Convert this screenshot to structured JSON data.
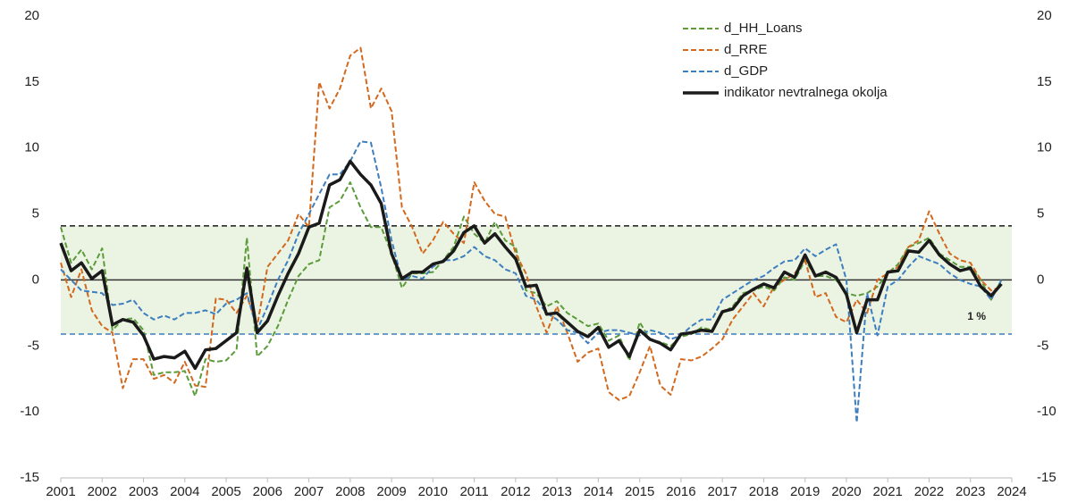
{
  "chart_data": {
    "type": "line",
    "x": [
      2001,
      2001.25,
      2001.5,
      2001.75,
      2002,
      2002.25,
      2002.5,
      2002.75,
      2003,
      2003.25,
      2003.5,
      2003.75,
      2004,
      2004.25,
      2004.5,
      2004.75,
      2005,
      2005.25,
      2005.5,
      2005.75,
      2006,
      2006.25,
      2006.5,
      2006.75,
      2007,
      2007.25,
      2007.5,
      2007.75,
      2008,
      2008.25,
      2008.5,
      2008.75,
      2009,
      2009.25,
      2009.5,
      2009.75,
      2010,
      2010.25,
      2010.5,
      2010.75,
      2011,
      2011.25,
      2011.5,
      2011.75,
      2012,
      2012.25,
      2012.5,
      2012.75,
      2013,
      2013.25,
      2013.5,
      2013.75,
      2014,
      2014.25,
      2014.5,
      2014.75,
      2015,
      2015.25,
      2015.5,
      2015.75,
      2016,
      2016.25,
      2016.5,
      2016.75,
      2017,
      2017.25,
      2017.5,
      2017.75,
      2018,
      2018.25,
      2018.5,
      2018.75,
      2019,
      2019.25,
      2019.5,
      2019.75,
      2020,
      2020.25,
      2020.5,
      2020.75,
      2021,
      2021.25,
      2021.5,
      2021.75,
      2022,
      2022.25,
      2022.5,
      2022.75,
      2023,
      2023.25,
      2023.5,
      2023.75
    ],
    "series": [
      {
        "name": "d_HH_Loans",
        "color": "#5b9b3a",
        "dash": true,
        "values": [
          4.0,
          1.3,
          2.3,
          0.8,
          2.4,
          -3.8,
          -3.0,
          -2.9,
          -3.8,
          -7.2,
          -7.0,
          -7.0,
          -6.9,
          -8.8,
          -6.0,
          -6.2,
          -6.1,
          -5.3,
          3.2,
          -5.8,
          -5.0,
          -3.5,
          -1.5,
          0.3,
          1.2,
          1.5,
          5.5,
          6.0,
          7.4,
          5.5,
          4.0,
          4.0,
          2.0,
          -0.6,
          0.5,
          0.5,
          0.6,
          1.5,
          2.5,
          4.8,
          3.5,
          2.8,
          4.4,
          3.0,
          2.5,
          -0.8,
          -1.0,
          -2.0,
          -1.6,
          -2.5,
          -3.0,
          -3.5,
          -3.3,
          -4.6,
          -4.2,
          -6.1,
          -3.2,
          -4.5,
          -4.7,
          -5.0,
          -4.3,
          -4.1,
          -3.6,
          -3.8,
          -2.5,
          -2.0,
          -1.0,
          -0.8,
          -0.5,
          -0.8,
          0.2,
          0.0,
          1.5,
          0.3,
          0.3,
          0.0,
          -1.0,
          -1.2,
          -1.0,
          -0.5,
          0.5,
          1.2,
          2.5,
          2.8,
          3.2,
          2.0,
          1.5,
          1.0,
          1.0,
          0.0,
          -1.5,
          0.0
        ]
      },
      {
        "name": "d_RRE",
        "color": "#d2691e",
        "dash": true,
        "values": [
          1.3,
          -1.3,
          0.8,
          -2.3,
          -3.5,
          -4.0,
          -8.2,
          -6.0,
          -6.0,
          -7.5,
          -7.2,
          -7.8,
          -6.2,
          -8.0,
          -8.1,
          -1.4,
          -1.5,
          -2.5,
          -1.2,
          -3.5,
          1.0,
          2.0,
          3.0,
          5.0,
          4.0,
          15.0,
          13.0,
          14.5,
          17.0,
          17.6,
          13.0,
          14.5,
          12.8,
          5.5,
          4.0,
          2.0,
          3.0,
          4.4,
          3.5,
          2.8,
          7.4,
          6.0,
          5.0,
          4.8,
          2.0,
          0.5,
          -2.0,
          -4.0,
          -2.0,
          -4.0,
          -6.2,
          -5.5,
          -5.2,
          -8.5,
          -9.1,
          -8.8,
          -7.0,
          -5.0,
          -8.0,
          -8.7,
          -6.0,
          -6.1,
          -5.8,
          -5.2,
          -4.5,
          -3.0,
          -2.0,
          -1.0,
          -2.0,
          -0.5,
          0.0,
          0.5,
          1.5,
          -1.3,
          -1.0,
          -2.8,
          -3.2,
          -1.5,
          -2.5,
          0.0,
          0.5,
          1.0,
          2.5,
          3.0,
          5.2,
          3.5,
          2.0,
          1.5,
          1.3,
          0.0,
          -0.8,
          -0.5
        ]
      },
      {
        "name": "d_GDP",
        "color": "#3d7ebf",
        "dash": true,
        "values": [
          0.8,
          0.0,
          -0.8,
          -0.9,
          -1.0,
          -1.9,
          -1.8,
          -1.5,
          -2.5,
          -3.0,
          -2.7,
          -3.0,
          -2.5,
          -2.5,
          -2.3,
          -2.6,
          -1.8,
          -1.5,
          -1.0,
          -3.8,
          -2.0,
          0.0,
          1.5,
          3.5,
          5.0,
          6.5,
          8.0,
          8.0,
          9.0,
          10.5,
          10.4,
          7.0,
          3.0,
          0.0,
          0.3,
          0.1,
          1.0,
          1.5,
          1.5,
          1.8,
          2.5,
          1.8,
          1.5,
          0.8,
          0.5,
          -1.2,
          -1.5,
          -2.5,
          -3.0,
          -3.8,
          -4.0,
          -4.8,
          -4.0,
          -3.8,
          -3.8,
          -4.0,
          -4.2,
          -3.8,
          -4.0,
          -4.5,
          -4.2,
          -3.5,
          -3.0,
          -3.0,
          -1.5,
          -1.0,
          -0.5,
          0.0,
          0.3,
          0.9,
          1.4,
          1.5,
          2.4,
          1.8,
          2.3,
          2.7,
          0.0,
          -10.8,
          -1.0,
          -4.2,
          -0.5,
          0.0,
          1.0,
          1.8,
          1.5,
          1.2,
          0.5,
          0.0,
          -0.3,
          -0.5,
          -1.5,
          0.0
        ]
      },
      {
        "name": "indikator nevtralnega okolja",
        "color": "#1a1a1a",
        "dash": false,
        "values": [
          2.8,
          0.7,
          1.3,
          0.1,
          0.7,
          -3.4,
          -3.0,
          -3.2,
          -4.2,
          -6.0,
          -5.8,
          -5.9,
          -5.4,
          -6.7,
          -5.3,
          -5.2,
          -4.6,
          -4.0,
          0.9,
          -4.0,
          -3.1,
          -1.2,
          0.5,
          2.0,
          4.0,
          4.3,
          7.2,
          7.6,
          9.0,
          8.0,
          7.2,
          5.8,
          2.0,
          0.1,
          0.6,
          0.6,
          1.2,
          1.4,
          2.2,
          3.6,
          4.1,
          2.8,
          3.5,
          2.5,
          1.6,
          -0.5,
          -0.4,
          -2.6,
          -2.5,
          -3.2,
          -3.9,
          -4.3,
          -3.6,
          -5.1,
          -4.6,
          -5.8,
          -3.8,
          -4.5,
          -4.8,
          -5.3,
          -4.1,
          -4.0,
          -3.8,
          -3.9,
          -2.4,
          -2.2,
          -1.2,
          -0.7,
          -0.3,
          -0.6,
          0.6,
          0.2,
          1.9,
          0.3,
          0.6,
          0.2,
          -1.1,
          -4.0,
          -1.5,
          -1.5,
          0.6,
          0.7,
          2.2,
          2.1,
          3.0,
          1.9,
          1.2,
          0.7,
          0.9,
          -0.5,
          -1.2,
          -0.3
        ]
      }
    ],
    "xlim": [
      2001,
      2024
    ],
    "xticks": [
      2001,
      2002,
      2003,
      2004,
      2005,
      2006,
      2007,
      2008,
      2009,
      2010,
      2011,
      2012,
      2013,
      2014,
      2015,
      2016,
      2017,
      2018,
      2019,
      2020,
      2021,
      2022,
      2023,
      2024
    ],
    "ylim": [
      -15,
      20
    ],
    "yticks": [
      -15,
      -10,
      -5,
      0,
      5,
      10,
      15,
      20
    ],
    "y2lim": [
      -15,
      20
    ],
    "y2ticks": [
      -15,
      -10,
      -5,
      0,
      5,
      10,
      15,
      20
    ],
    "band": {
      "from": -4.1,
      "to": 4.1,
      "color": "#ebf3e3"
    },
    "reference_lines": [
      {
        "value": 4.1,
        "color": "#1a1a1a"
      },
      {
        "value": -4.1,
        "color": "#3d7ebf"
      }
    ],
    "zero_line": true,
    "annotation": "1 %",
    "legend": "top-right"
  }
}
